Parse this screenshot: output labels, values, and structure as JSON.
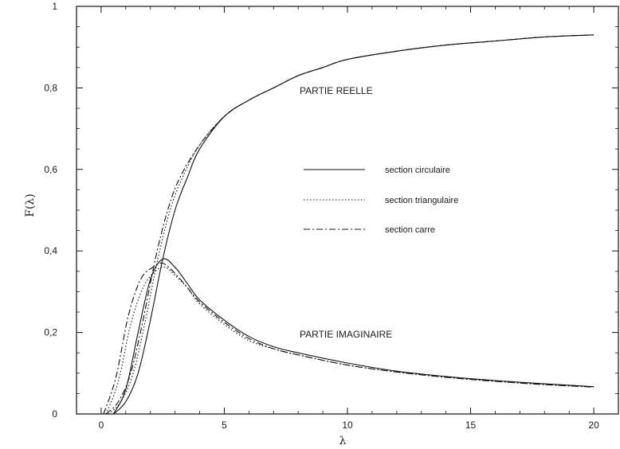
{
  "chart_data": {
    "type": "line",
    "xlabel": "λ",
    "ylabel": "F(λ)",
    "xlim": [
      -1,
      21
    ],
    "ylim": [
      0,
      1
    ],
    "x_ticks": [
      0,
      5,
      10,
      15,
      20
    ],
    "x_tick_labels": [
      "0",
      "5",
      "10",
      "15",
      "20"
    ],
    "y_ticks": [
      0,
      0.2,
      0.4,
      0.6,
      0.8,
      1
    ],
    "y_tick_labels": [
      "0",
      "0,2",
      "0,4",
      "0,6",
      "0,8",
      "1"
    ],
    "grid": false,
    "legend_position": "center-right",
    "legend": [
      {
        "label": "section circulaire",
        "style": "solid"
      },
      {
        "label": "section triangulaire",
        "style": "dotted"
      },
      {
        "label": "section carre",
        "style": "dashdot"
      }
    ],
    "annotations": [
      {
        "text": "PARTIE REELLE",
        "x": 8,
        "y": 0.8
      },
      {
        "text": "PARTIE IMAGINAIRE",
        "x": 8,
        "y": 0.19
      }
    ],
    "series": [
      {
        "group": "real",
        "style": "solid",
        "x": [
          0.5,
          1.0,
          1.5,
          2.0,
          2.5,
          3.0,
          3.5,
          4.0,
          5.0,
          6.0,
          7.0,
          8.0,
          9.0,
          10.0,
          12.0,
          14.0,
          16.0,
          18.0,
          20.0
        ],
        "y": [
          0.0,
          0.03,
          0.1,
          0.23,
          0.38,
          0.5,
          0.58,
          0.65,
          0.73,
          0.77,
          0.8,
          0.83,
          0.85,
          0.87,
          0.89,
          0.905,
          0.915,
          0.925,
          0.93
        ]
      },
      {
        "group": "real",
        "style": "dotted",
        "x": [
          0.3,
          0.8,
          1.3,
          1.8,
          2.3,
          2.8,
          3.3,
          4.0,
          5.0,
          6.0,
          7.0,
          8.0,
          9.0,
          10.0,
          12.0,
          14.0,
          16.0,
          18.0,
          20.0
        ],
        "y": [
          0.0,
          0.03,
          0.1,
          0.23,
          0.38,
          0.5,
          0.58,
          0.66,
          0.73,
          0.77,
          0.8,
          0.83,
          0.85,
          0.87,
          0.89,
          0.905,
          0.915,
          0.925,
          0.93
        ]
      },
      {
        "group": "real",
        "style": "dashdot",
        "x": [
          0.2,
          0.7,
          1.2,
          1.7,
          2.2,
          2.7,
          3.2,
          4.0,
          5.0,
          6.0,
          7.0,
          8.0,
          9.0,
          10.0,
          12.0,
          14.0,
          16.0,
          18.0,
          20.0
        ],
        "y": [
          0.0,
          0.03,
          0.1,
          0.23,
          0.38,
          0.5,
          0.58,
          0.66,
          0.73,
          0.77,
          0.8,
          0.83,
          0.85,
          0.87,
          0.89,
          0.905,
          0.915,
          0.925,
          0.93
        ]
      },
      {
        "group": "imaginary",
        "style": "solid",
        "x": [
          0.5,
          1.0,
          1.5,
          2.0,
          2.5,
          3.0,
          3.5,
          4.0,
          5.0,
          6.0,
          7.0,
          8.0,
          10.0,
          12.0,
          14.0,
          16.0,
          18.0,
          20.0
        ],
        "y": [
          0.0,
          0.06,
          0.2,
          0.33,
          0.38,
          0.36,
          0.32,
          0.28,
          0.23,
          0.19,
          0.165,
          0.15,
          0.125,
          0.105,
          0.092,
          0.082,
          0.074,
          0.067
        ]
      },
      {
        "group": "imaginary",
        "style": "dotted",
        "x": [
          0.2,
          0.7,
          1.2,
          1.7,
          2.2,
          2.6,
          3.0,
          3.5,
          4.0,
          5.0,
          6.0,
          7.0,
          8.0,
          10.0,
          12.0,
          14.0,
          16.0,
          18.0,
          20.0
        ],
        "y": [
          0.0,
          0.08,
          0.22,
          0.31,
          0.35,
          0.36,
          0.34,
          0.31,
          0.27,
          0.22,
          0.18,
          0.16,
          0.145,
          0.12,
          0.103,
          0.09,
          0.08,
          0.072,
          0.066
        ]
      },
      {
        "group": "imaginary",
        "style": "dashdot",
        "x": [
          0.1,
          0.6,
          1.1,
          1.6,
          2.1,
          2.5,
          3.0,
          3.5,
          4.0,
          5.0,
          6.0,
          7.0,
          8.0,
          10.0,
          12.0,
          14.0,
          16.0,
          18.0,
          20.0
        ],
        "y": [
          0.0,
          0.09,
          0.24,
          0.33,
          0.36,
          0.37,
          0.345,
          0.31,
          0.275,
          0.225,
          0.185,
          0.16,
          0.145,
          0.12,
          0.103,
          0.09,
          0.08,
          0.072,
          0.066
        ]
      }
    ]
  }
}
